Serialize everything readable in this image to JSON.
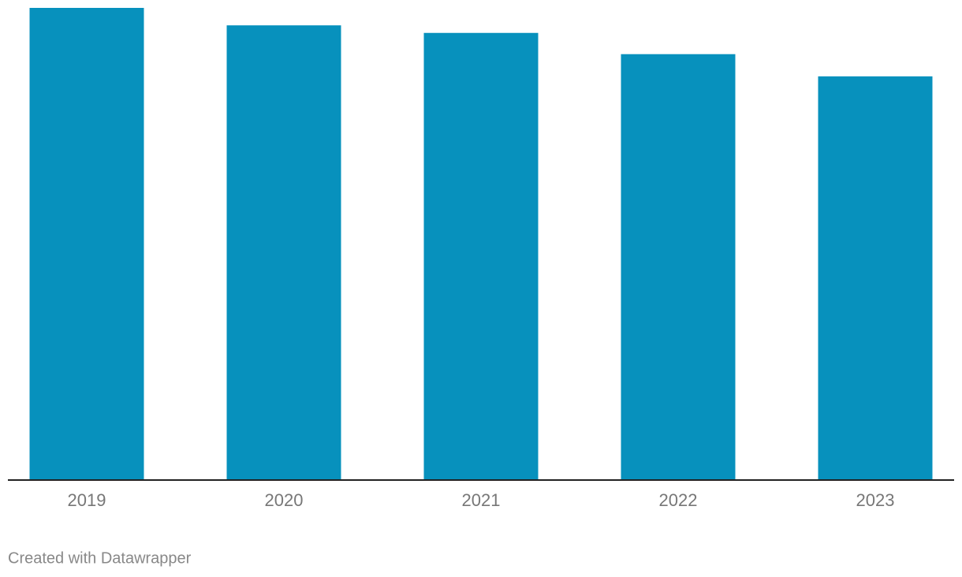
{
  "chart_data": {
    "type": "bar",
    "categories": [
      "2019",
      "2020",
      "2021",
      "2022",
      "2023"
    ],
    "values": [
      100,
      96.3,
      94.7,
      90.2,
      85.5
    ],
    "color": "#0791bd",
    "credit": "Created with Datawrapper"
  }
}
